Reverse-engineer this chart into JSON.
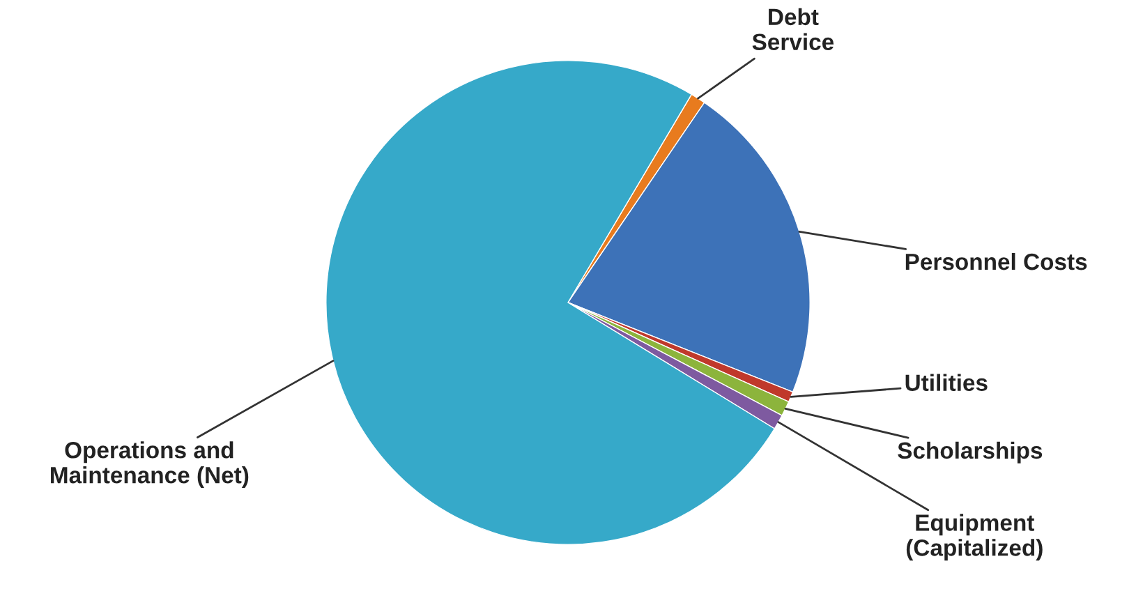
{
  "chart_data": {
    "type": "pie",
    "categories": [
      "Debt\nService",
      "Personnel Costs",
      "Utilities",
      "Scholarships",
      "Equipment\n(Capitalized)",
      "Operations and\nMaintenance (Net)"
    ],
    "values": [
      1.0,
      21.5,
      0.7,
      1.0,
      1.0,
      74.8
    ],
    "colors": [
      "#e87b1e",
      "#3d72b8",
      "#c0392b",
      "#8cb43c",
      "#7e5aa0",
      "#36a9c9"
    ],
    "legend": false
  }
}
